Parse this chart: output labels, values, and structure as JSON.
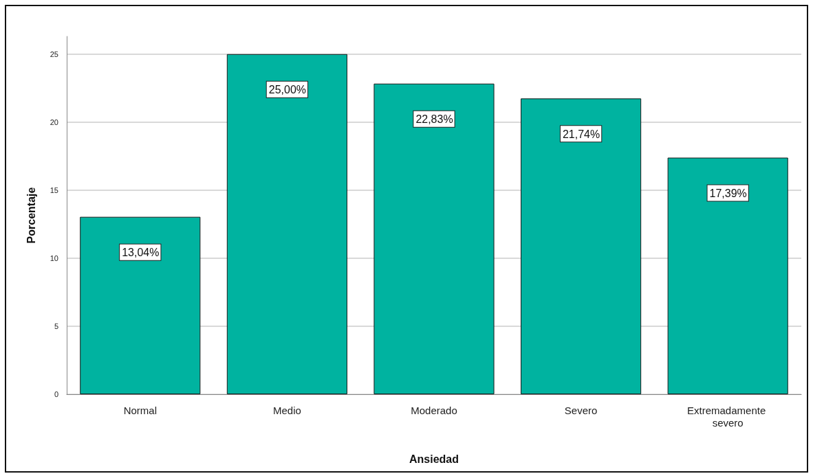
{
  "chart_data": {
    "type": "bar",
    "xlabel": "Ansiedad",
    "ylabel": "Porcentaje",
    "categories": [
      "Normal",
      "Medio",
      "Moderado",
      "Severo",
      "Extremadamente severo"
    ],
    "values": [
      13.04,
      25.0,
      22.83,
      21.74,
      17.39
    ],
    "value_labels": [
      "13,04%",
      "25,00%",
      "22,83%",
      "21,74%",
      "17,39%"
    ],
    "color": "#00b3a0",
    "ylim": [
      0,
      26.3
    ],
    "yticks": [
      0,
      5,
      10,
      15,
      20,
      25
    ],
    "grid": "y"
  }
}
